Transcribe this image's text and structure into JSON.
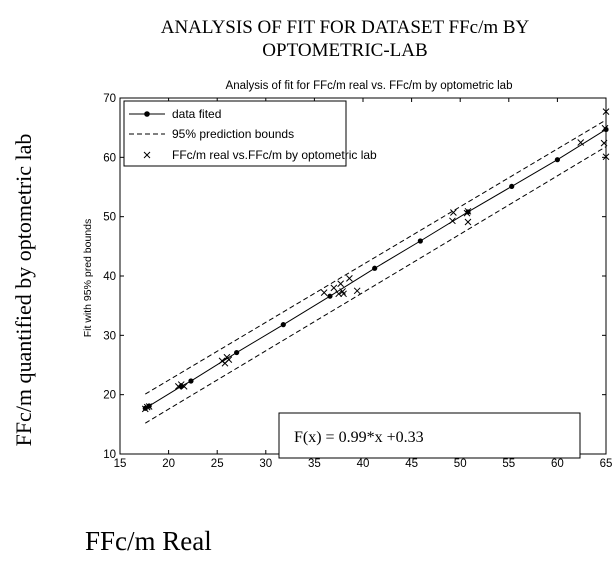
{
  "figure": {
    "title_line1": "ANALYSIS OF FIT FOR DATASET FFc/m BY",
    "title_line2": "OPTOMETRIC-LAB",
    "outer_ylabel": "FFc/m quantified by optometric lab",
    "outer_xlabel": "FFc/m Real"
  },
  "colors": {
    "line": "#000000",
    "background": "#ffffff"
  },
  "chart_data": {
    "type": "scatter",
    "title": "Analysis of fit for FFc/m real vs. FFc/m by optometric lab",
    "xlabel": "",
    "ylabel": "Fit with 95% pred bounds",
    "xlim": [
      15,
      65
    ],
    "ylim": [
      10,
      70
    ],
    "xticks": [
      15,
      20,
      25,
      30,
      35,
      40,
      45,
      50,
      55,
      60,
      65
    ],
    "yticks": [
      10,
      20,
      30,
      40,
      50,
      60,
      70
    ],
    "grid": false,
    "legend_position": "top-left",
    "equation": "F(x) = 0.99*x +0.33",
    "series": [
      {
        "name": "data fited",
        "style": "solid-line-dots",
        "x": [
          17.6,
          18.0,
          21.3,
          22.3,
          27.0,
          31.8,
          36.6,
          41.2,
          45.9,
          50.8,
          55.3,
          60.0,
          65.0
        ],
        "y": [
          17.7,
          18.1,
          21.4,
          22.3,
          27.1,
          31.8,
          36.6,
          41.3,
          45.9,
          50.8,
          55.1,
          59.6,
          64.7
        ]
      },
      {
        "name": "95% prediction bounds",
        "style": "dashed",
        "x": [
          17.6,
          65.0
        ],
        "upper": [
          20.1,
          66.3
        ],
        "lower": [
          15.2,
          61.8
        ]
      },
      {
        "name": "FFc/m real vs.FFc/m by optometric lab",
        "style": "x-markers",
        "x": [
          17.6,
          17.8,
          18.0,
          21.0,
          21.3,
          21.6,
          25.5,
          25.8,
          26.0,
          26.2,
          36.0,
          37.0,
          37.5,
          37.7,
          37.9,
          38.0,
          38.6,
          39.4,
          49.2,
          49.3,
          50.7,
          50.8,
          50.8,
          62.4,
          64.8,
          64.9,
          65.0,
          65.0
        ],
        "y": [
          17.6,
          17.9,
          18.0,
          21.4,
          21.7,
          21.4,
          25.7,
          25.3,
          26.3,
          25.9,
          37.2,
          38.0,
          37.0,
          38.7,
          37.4,
          37.0,
          39.6,
          37.5,
          49.3,
          50.7,
          50.6,
          50.9,
          49.1,
          62.5,
          62.4,
          64.9,
          67.7,
          60.1
        ]
      }
    ]
  }
}
